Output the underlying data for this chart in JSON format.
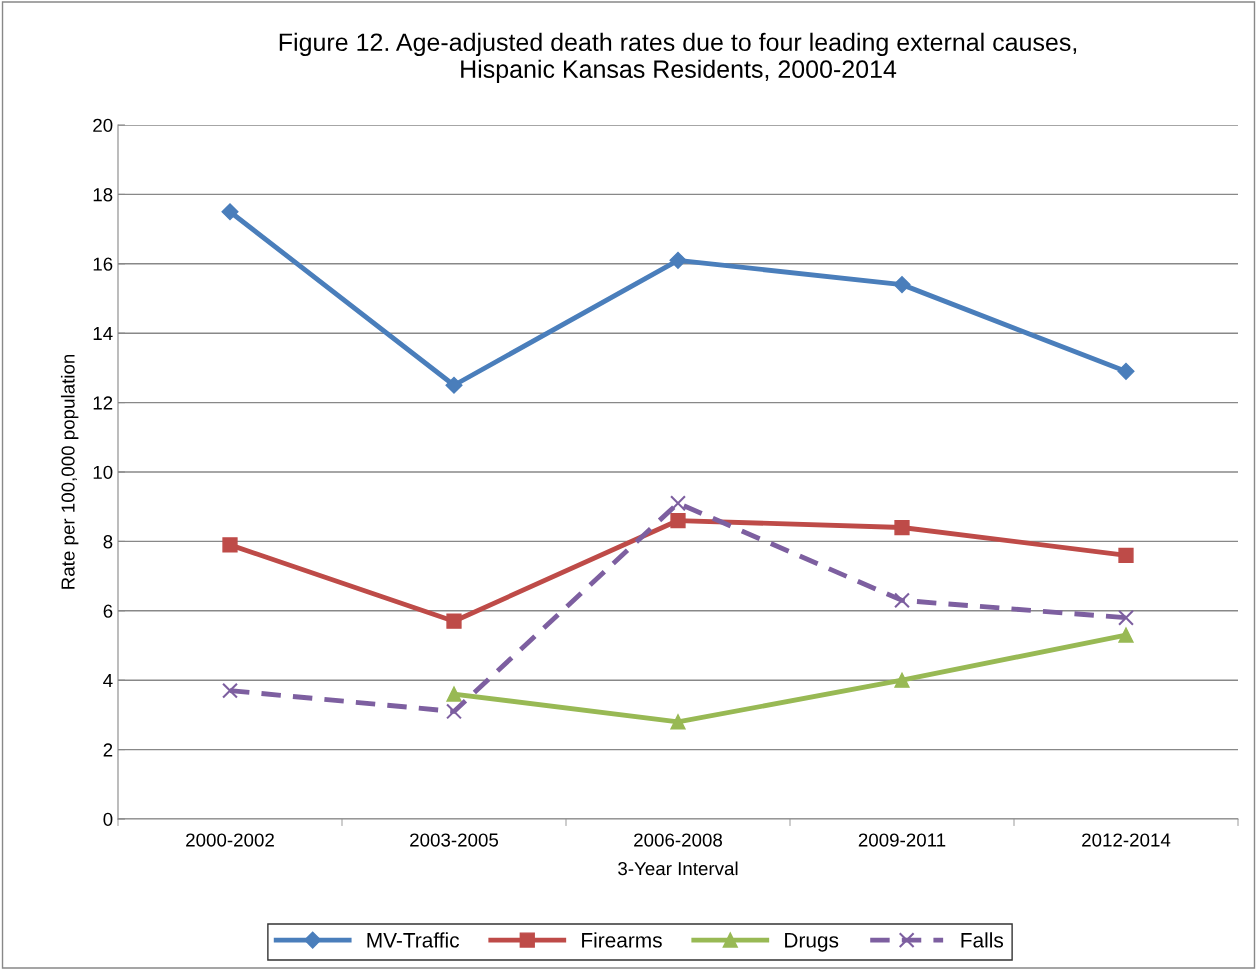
{
  "chart_data": {
    "type": "line",
    "title": "Figure 12. Age-adjusted death rates due to four leading external causes,\nHispanic Kansas Residents, 2000-2014",
    "xlabel": "3-Year Interval",
    "ylabel": "Rate per 100,000 population",
    "categories": [
      "2000-2002",
      "2003-2005",
      "2006-2008",
      "2009-2011",
      "2012-2014"
    ],
    "series": [
      {
        "name": "MV-Traffic",
        "color": "#4a7ebb",
        "marker": "diamond",
        "line_style": "solid",
        "values": [
          17.5,
          12.5,
          16.1,
          15.4,
          12.9
        ]
      },
      {
        "name": "Firearms",
        "color": "#be4b48",
        "marker": "square",
        "line_style": "solid",
        "values": [
          7.9,
          5.7,
          8.6,
          8.4,
          7.6
        ]
      },
      {
        "name": "Drugs",
        "color": "#98b954",
        "marker": "triangle",
        "line_style": "solid",
        "values": [
          null,
          3.6,
          2.8,
          4.0,
          5.3
        ]
      },
      {
        "name": "Falls",
        "color": "#7d5fa0",
        "marker": "cross",
        "line_style": "dashed",
        "values": [
          3.7,
          3.1,
          9.1,
          6.3,
          5.8
        ]
      }
    ],
    "ylim": [
      0,
      20
    ],
    "yticks": [
      0,
      2,
      4,
      6,
      8,
      10,
      12,
      14,
      16,
      18,
      20
    ],
    "grid": "y",
    "legend": "bottom"
  }
}
